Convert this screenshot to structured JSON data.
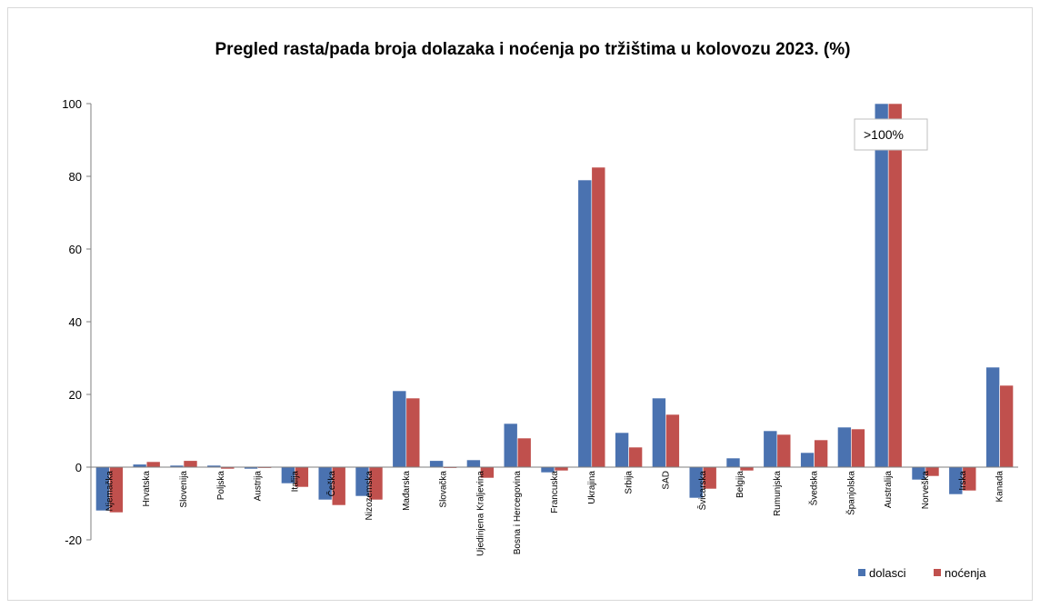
{
  "chart_data": {
    "type": "bar",
    "title": "Pregled rasta/pada broja dolazaka i noćenja po tržištima u kolovozu 2023. (%)",
    "categories": [
      "Njemačka",
      "Hrvatska",
      "Slovenija",
      "Poljska",
      "Austrija",
      "Italija",
      "Češka",
      "Nizozemska",
      "Mađarska",
      "Slovačka",
      "Ujedinjena Kraljevina",
      "Bosna i Hercegovina",
      "Francuska",
      "Ukrajina",
      "Srbija",
      "SAD",
      "Švicarska",
      "Belgija",
      "Rumunjska",
      "Švedska",
      "Španjolska",
      "Australija",
      "Norveška",
      "Irska",
      "Kanada"
    ],
    "series": [
      {
        "name": "dolasci",
        "color": "#4a72b0",
        "values": [
          -12,
          0.8,
          0.5,
          0.5,
          -0.5,
          -4.5,
          -9,
          -8,
          21,
          1.8,
          2,
          12,
          -1.5,
          79,
          9.5,
          19,
          -8.5,
          2.5,
          10,
          4,
          11,
          100,
          -3.5,
          -7.5,
          27.5
        ]
      },
      {
        "name": "noćenja",
        "color": "#c0504d",
        "values": [
          -12.5,
          1.5,
          1.8,
          -0.5,
          -0.3,
          -5.5,
          -10.5,
          -9,
          19,
          -0.3,
          -3,
          8,
          -1,
          82.5,
          5.5,
          14.5,
          -6,
          -1,
          9,
          7.5,
          10.5,
          100,
          -2.5,
          -6.5,
          22.5
        ]
      }
    ],
    "ylim": [
      -20,
      100
    ],
    "yticks": [
      -20,
      0,
      20,
      40,
      60,
      80,
      100
    ],
    "grid": false,
    "legend_position": "bottom-right",
    "annotation": ">100%"
  }
}
